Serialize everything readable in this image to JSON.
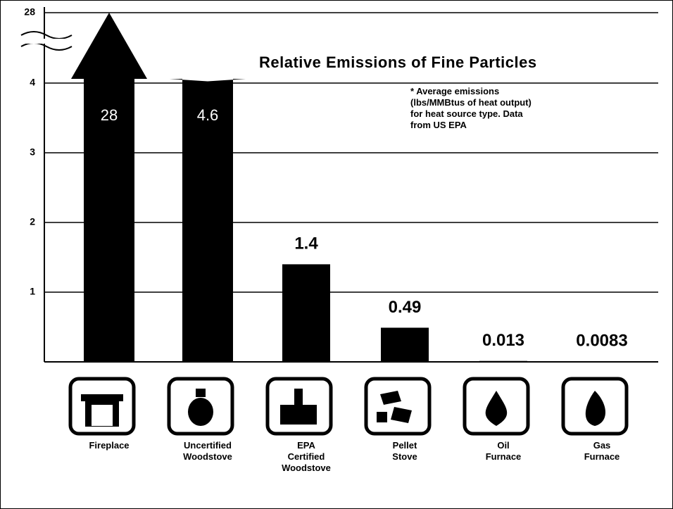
{
  "chart_data": {
    "type": "bar",
    "title": "Relative Emissions of Fine Particles",
    "annotation": "* Average emissions\n(lbs/MMBtus of heat output)\nfor heat source type. Data\nfrom US EPA",
    "categories": [
      "Fireplace",
      "Uncertified\nWoodstove",
      "EPA\nCertified\nWoodstove",
      "Pellet\nStove",
      "Oil\nFurnace",
      "Gas\nFurnace"
    ],
    "values": [
      28,
      4.6,
      1.4,
      0.49,
      0.013,
      0.0083
    ],
    "color": "#000000",
    "ylim": [
      0,
      28
    ],
    "yticks": [
      1,
      2,
      3,
      4,
      28
    ],
    "axis_break": true,
    "grid": true
  }
}
